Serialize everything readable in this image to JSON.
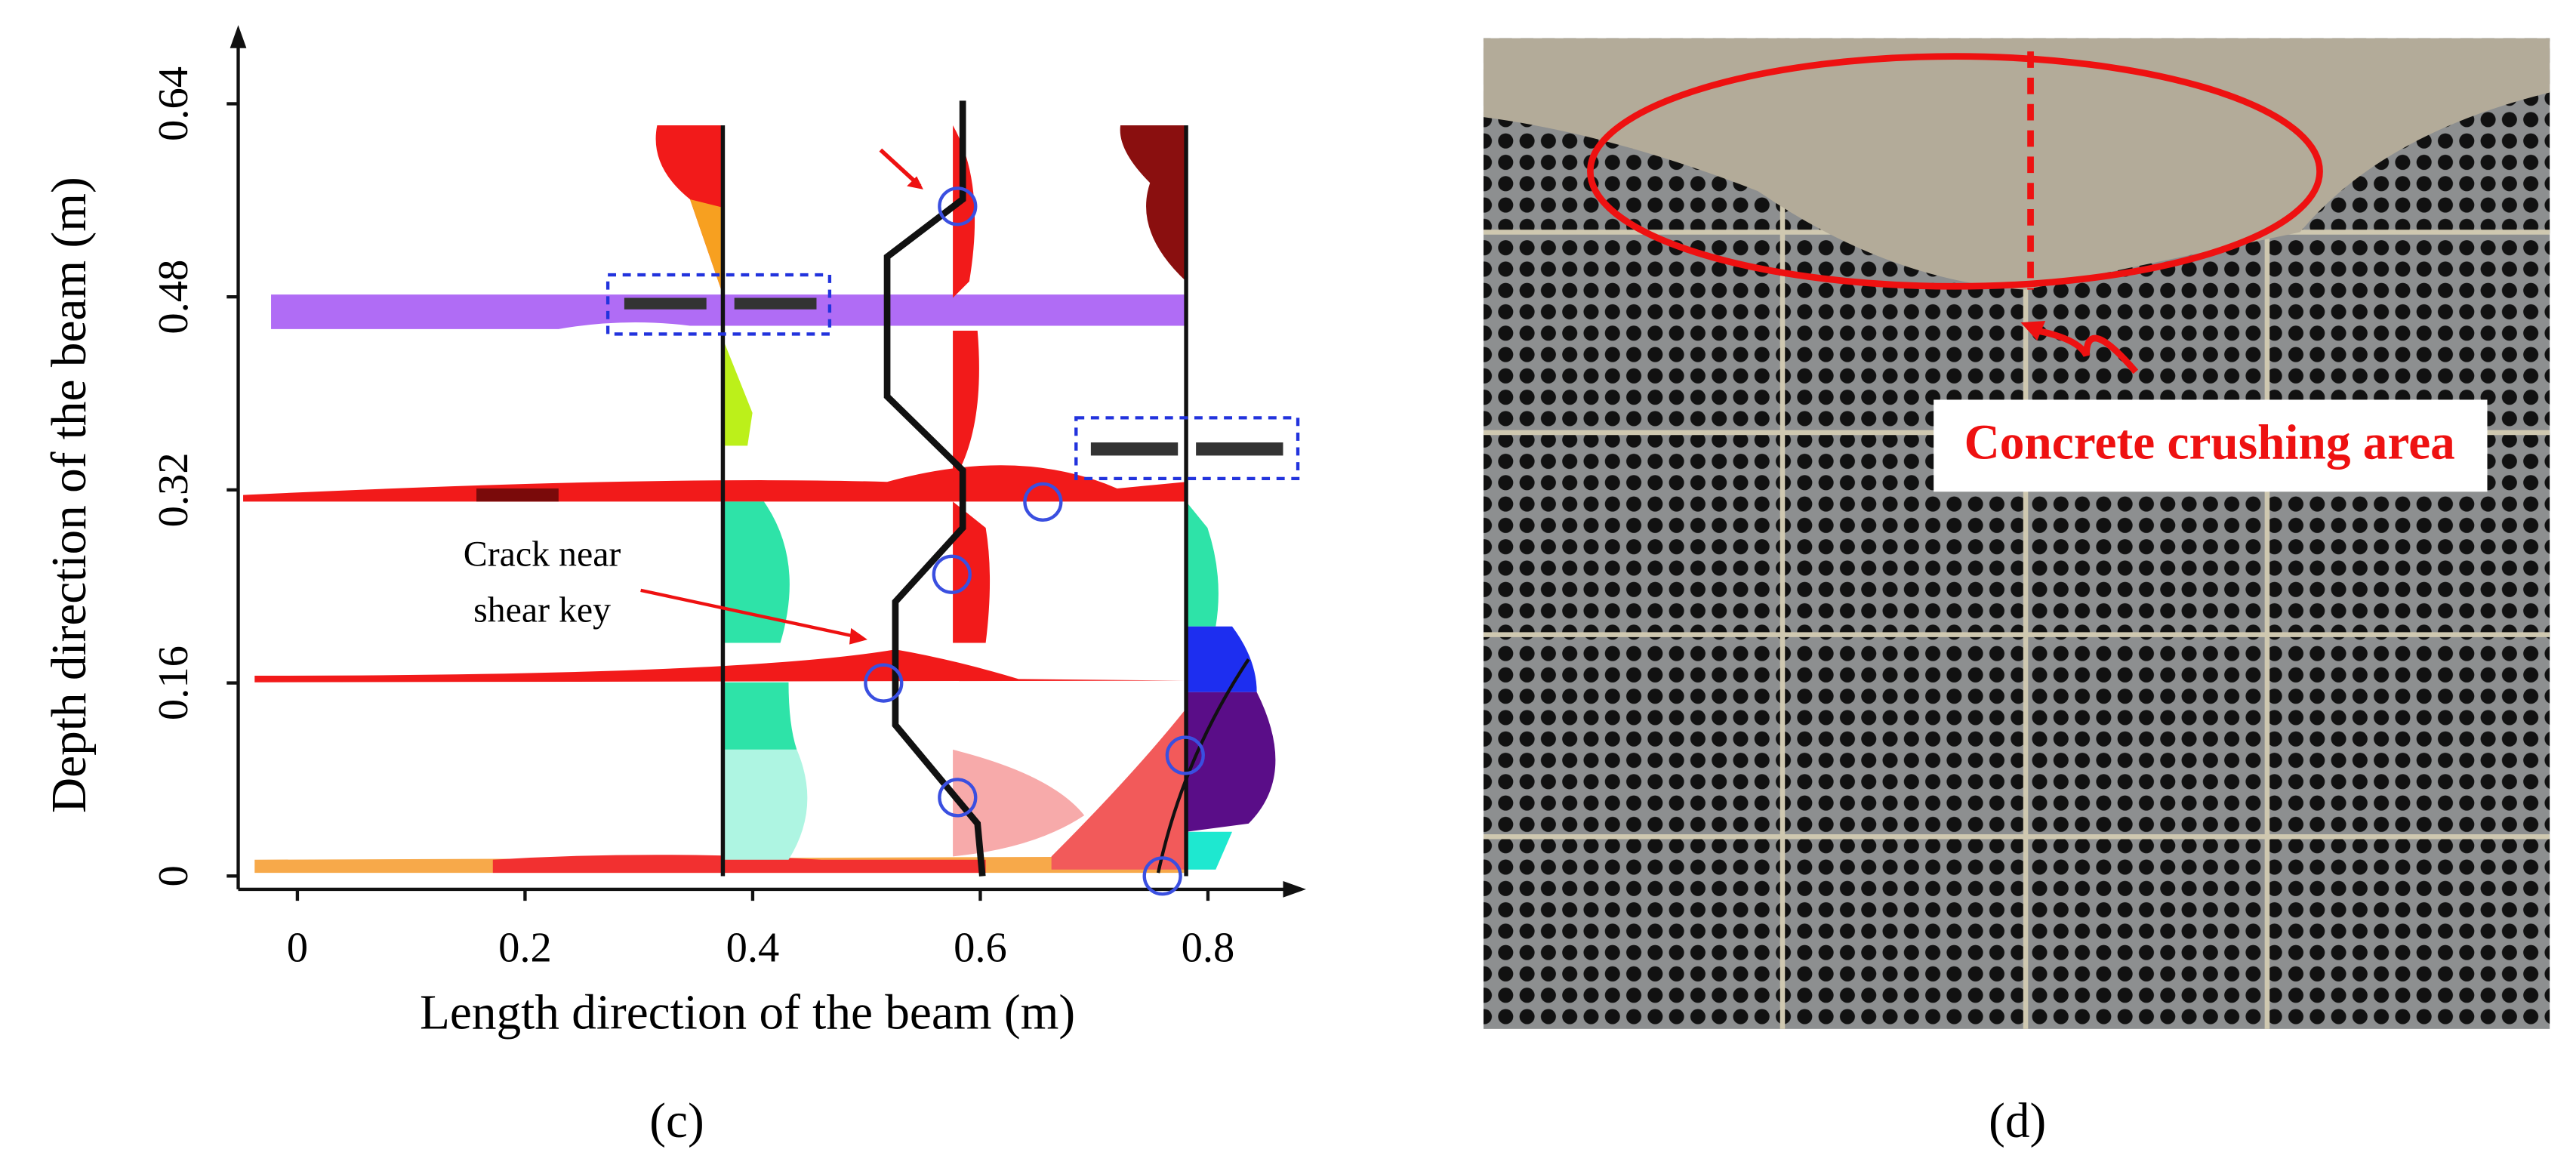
{
  "chart_data": {
    "type": "scatter",
    "xlabel": "Length direction of the beam (m)",
    "ylabel": "Depth  direction of the beam (m)",
    "x": [
      0.58,
      0.655,
      0.575,
      0.515,
      0.58,
      0.78,
      0.76
    ],
    "values": [
      0.555,
      0.31,
      0.25,
      0.16,
      0.065,
      0.1,
      0.0
    ],
    "color": "#3a4fe0",
    "xlim": [
      -0.052,
      0.879
    ],
    "ylim": [
      -0.011,
      0.697
    ],
    "xticks": [
      0,
      0.2,
      0.4,
      0.6,
      0.8
    ],
    "yticks": [
      0,
      0.16,
      0.32,
      0.48,
      0.64
    ],
    "grid": false,
    "annotation": [
      "Crack near",
      "shear key"
    ],
    "panel_label": "(c)"
  },
  "photo": {
    "label": "Concrete crushing area",
    "panel_label": "(d)"
  }
}
